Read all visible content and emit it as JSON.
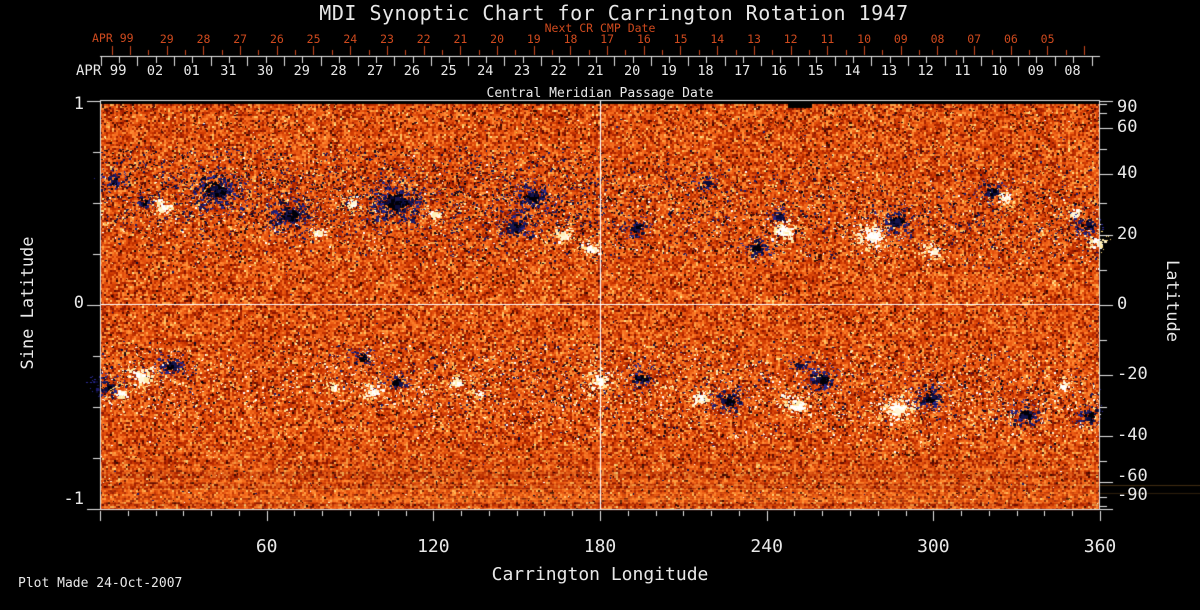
{
  "footer": {
    "plot_made": "Plot Made 24-Oct-2007"
  },
  "colors": {
    "background": "#000000",
    "text": "#e8e8e8",
    "red": "#cf4a1e",
    "frame": "#e8e8e8",
    "meridian_line": "#ffffff"
  },
  "chart_data": {
    "type": "heatmap",
    "title": "MDI Synoptic Chart for Carrington Rotation 1947",
    "subtitle_top": "Next CR CMP Date",
    "top_axis_label": "Central Meridian Passage Date",
    "xlabel": "Carrington Longitude",
    "ylabel_left": "Sine Latitude",
    "ylabel_right": "Latitude",
    "x_range": [
      0,
      360
    ],
    "x_major_ticks": [
      60,
      120,
      180,
      240,
      300,
      360
    ],
    "x_minor_step_deg": 10,
    "sine_latitude_range": [
      -1,
      1
    ],
    "sine_latitude_major_ticks": [
      1,
      0,
      -1
    ],
    "sine_latitude_minor_ticks": [
      0.75,
      0.5,
      0.25,
      -0.25,
      -0.5,
      -0.75
    ],
    "latitude_major_ticks": [
      90,
      60,
      40,
      20,
      0,
      -20,
      -40,
      -60,
      -90
    ],
    "latitude_minor_ticks": [
      80,
      70,
      50,
      30,
      10,
      -10,
      -30,
      -50,
      -70,
      -80
    ],
    "reference_lines": {
      "meridian_lon": 180,
      "equator_sine_lat": 0
    },
    "next_cr_dates": {
      "month_label": "APR 99",
      "days": [
        "29",
        "28",
        "27",
        "26",
        "25",
        "24",
        "23",
        "22",
        "21",
        "20",
        "19",
        "18",
        "17",
        "16",
        "15",
        "14",
        "13",
        "12",
        "11",
        "10",
        "09",
        "08",
        "07",
        "06",
        "05"
      ]
    },
    "cmp_dates": {
      "month_label": "APR 99",
      "days": [
        "02",
        "01",
        "31",
        "30",
        "29",
        "28",
        "27",
        "26",
        "25",
        "24",
        "23",
        "22",
        "21",
        "20",
        "19",
        "18",
        "17",
        "16",
        "15",
        "14",
        "13",
        "12",
        "11",
        "10",
        "09",
        "08"
      ]
    },
    "colormap": {
      "base_palette": [
        "#5e0a00",
        "#8a1600",
        "#a82200",
        "#c03000",
        "#d23e04",
        "#e04d0c",
        "#ec5c14",
        "#f56d1f",
        "#fb7e2a",
        "#ff9038",
        "#ffa648",
        "#ffc261"
      ],
      "negative_core": [
        "#000008",
        "#000008",
        "#0b0b3a",
        "#15154f"
      ],
      "negative_edge": [
        "#141452",
        "#1d1d70",
        "#0a0a30",
        "#26268a"
      ],
      "positive_core": [
        "#ffffff",
        "#ffffff",
        "#fff7d9",
        "#ffefb5"
      ],
      "positive_edge": [
        "#ffeaa0",
        "#fff3c8",
        "#ffffff"
      ],
      "negative_fringe": "#2b2b96",
      "positive_fringe": "#ffdf7d",
      "speckle_dark": [
        "#0a0a2e",
        "#12124d",
        "#1b1b6b",
        "#000010"
      ],
      "speckle_bright": [
        "#ffffff",
        "#fff3c4",
        "#ffe9a8"
      ],
      "rare_bright": "#ffe58a",
      "rare_dark": "#2e0600",
      "polar_gap": "#000000"
    },
    "speckle_bands": [
      {
        "hemisphere": "north",
        "sin_lat_center": 0.49,
        "sin_lat_sigma": 0.16,
        "dark_count": 5200,
        "bright_count": 900,
        "west_bias": true
      },
      {
        "hemisphere": "south",
        "sin_lat_center": -0.4,
        "sin_lat_sigma": 0.13,
        "dark_count": 1500,
        "bright_count": 1900,
        "west_bias": false
      }
    ],
    "active_regions": [
      {
        "lon": 4.3,
        "sin_lat": 0.613,
        "polarity": "-",
        "r": 9
      },
      {
        "lon": 15.5,
        "sin_lat": 0.505,
        "polarity": "-",
        "r": 7
      },
      {
        "lon": 22.3,
        "sin_lat": 0.48,
        "polarity": "+",
        "r": 10
      },
      {
        "lon": 41.4,
        "sin_lat": 0.564,
        "polarity": "-",
        "r": 21
      },
      {
        "lon": 68.4,
        "sin_lat": 0.441,
        "polarity": "-",
        "r": 18
      },
      {
        "lon": 78.5,
        "sin_lat": 0.353,
        "polarity": "+",
        "r": 7
      },
      {
        "lon": 90.7,
        "sin_lat": 0.5,
        "polarity": "+",
        "r": 8
      },
      {
        "lon": 106.2,
        "sin_lat": 0.505,
        "polarity": "-",
        "r": 24
      },
      {
        "lon": 119.9,
        "sin_lat": 0.446,
        "polarity": "+",
        "r": 7
      },
      {
        "lon": 149.0,
        "sin_lat": 0.387,
        "polarity": "-",
        "r": 13
      },
      {
        "lon": 155.5,
        "sin_lat": 0.529,
        "polarity": "-",
        "r": 15
      },
      {
        "lon": 166.7,
        "sin_lat": 0.343,
        "polarity": "+",
        "r": 8
      },
      {
        "lon": 176.4,
        "sin_lat": 0.279,
        "polarity": "+",
        "r": 9
      },
      {
        "lon": 193.0,
        "sin_lat": 0.377,
        "polarity": "-",
        "r": 10
      },
      {
        "lon": 218.2,
        "sin_lat": 0.603,
        "polarity": "-",
        "r": 8
      },
      {
        "lon": 236.5,
        "sin_lat": 0.284,
        "polarity": "-",
        "r": 11
      },
      {
        "lon": 244.4,
        "sin_lat": 0.436,
        "polarity": "-",
        "r": 8
      },
      {
        "lon": 245.9,
        "sin_lat": 0.363,
        "polarity": "+",
        "r": 13
      },
      {
        "lon": 278.3,
        "sin_lat": 0.338,
        "polarity": "+",
        "r": 17
      },
      {
        "lon": 286.9,
        "sin_lat": 0.412,
        "polarity": "-",
        "r": 14
      },
      {
        "lon": 299.5,
        "sin_lat": 0.265,
        "polarity": "+",
        "r": 9
      },
      {
        "lon": 321.1,
        "sin_lat": 0.559,
        "polarity": "-",
        "r": 10
      },
      {
        "lon": 325.8,
        "sin_lat": 0.529,
        "polarity": "+",
        "r": 9
      },
      {
        "lon": 350.3,
        "sin_lat": 0.446,
        "polarity": "+",
        "r": 7
      },
      {
        "lon": 355.0,
        "sin_lat": 0.392,
        "polarity": "-",
        "r": 10
      },
      {
        "lon": 358.9,
        "sin_lat": 0.309,
        "polarity": "+",
        "r": 8
      },
      {
        "lon": 2.2,
        "sin_lat": -0.397,
        "polarity": "-",
        "r": 11
      },
      {
        "lon": 7.6,
        "sin_lat": -0.431,
        "polarity": "+",
        "r": 7
      },
      {
        "lon": 14.8,
        "sin_lat": -0.353,
        "polarity": "+",
        "r": 12
      },
      {
        "lon": 25.9,
        "sin_lat": -0.299,
        "polarity": "-",
        "r": 12
      },
      {
        "lon": 83.9,
        "sin_lat": -0.397,
        "polarity": "+",
        "r": 6
      },
      {
        "lon": 94.3,
        "sin_lat": -0.255,
        "polarity": "-",
        "r": 8
      },
      {
        "lon": 97.9,
        "sin_lat": -0.422,
        "polarity": "+",
        "r": 9
      },
      {
        "lon": 106.6,
        "sin_lat": -0.373,
        "polarity": "-",
        "r": 9
      },
      {
        "lon": 128.2,
        "sin_lat": -0.377,
        "polarity": "+",
        "r": 7
      },
      {
        "lon": 136.4,
        "sin_lat": -0.436,
        "polarity": "+",
        "r": 6
      },
      {
        "lon": 179.6,
        "sin_lat": -0.373,
        "polarity": "+",
        "r": 11
      },
      {
        "lon": 194.8,
        "sin_lat": -0.353,
        "polarity": "-",
        "r": 11
      },
      {
        "lon": 216.4,
        "sin_lat": -0.451,
        "polarity": "+",
        "r": 9
      },
      {
        "lon": 226.1,
        "sin_lat": -0.466,
        "polarity": "-",
        "r": 13
      },
      {
        "lon": 250.9,
        "sin_lat": -0.49,
        "polarity": "+",
        "r": 13
      },
      {
        "lon": 252.0,
        "sin_lat": -0.294,
        "polarity": "-",
        "r": 7
      },
      {
        "lon": 260.0,
        "sin_lat": -0.363,
        "polarity": "-",
        "r": 13
      },
      {
        "lon": 286.9,
        "sin_lat": -0.51,
        "polarity": "+",
        "r": 16
      },
      {
        "lon": 298.4,
        "sin_lat": -0.451,
        "polarity": "-",
        "r": 13
      },
      {
        "lon": 333.0,
        "sin_lat": -0.539,
        "polarity": "-",
        "r": 12
      },
      {
        "lon": 347.0,
        "sin_lat": -0.402,
        "polarity": "+",
        "r": 8
      },
      {
        "lon": 356.0,
        "sin_lat": -0.544,
        "polarity": "-",
        "r": 10
      }
    ]
  }
}
